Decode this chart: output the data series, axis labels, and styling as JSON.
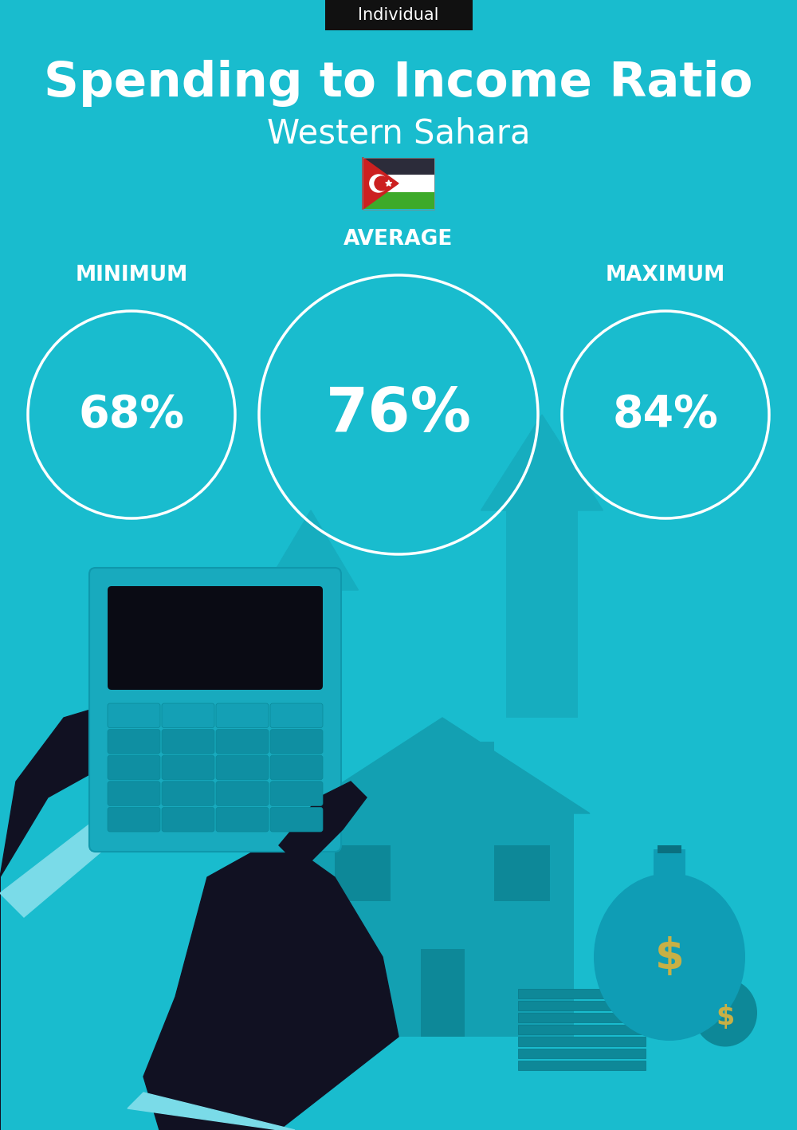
{
  "title_line1": "Spending to Income Ratio",
  "subtitle": "Western Sahara",
  "tag": "Individual",
  "bg_color": "#19BCCE",
  "tag_bg": "#111111",
  "tag_color": "#ffffff",
  "title_color": "#ffffff",
  "subtitle_color": "#ffffff",
  "circle_edge_color": "#ffffff",
  "min_label": "MINIMUM",
  "avg_label": "AVERAGE",
  "max_label": "MAXIMUM",
  "min_value": "68%",
  "avg_value": "76%",
  "max_value": "84%",
  "label_color": "#ffffff",
  "value_color": "#ffffff",
  "title_fontsize": 44,
  "subtitle_fontsize": 30,
  "tag_fontsize": 15,
  "label_fontsize": 19,
  "min_value_fontsize": 40,
  "avg_value_fontsize": 55,
  "max_value_fontsize": 40,
  "arrow_color": "#16ADBF",
  "house_color": "#13A0B2",
  "hand_color": "#111122",
  "calc_body_color": "#18AABE",
  "calc_screen_color": "#0A0B14",
  "btn_color": "#14A0B5",
  "btn_dark_color": "#0F8FA2",
  "cuff_color": "#7ADBE8",
  "bag_color": "#0F9DB5",
  "dollar_color": "#C8B045",
  "bill_color": "#0E8898"
}
